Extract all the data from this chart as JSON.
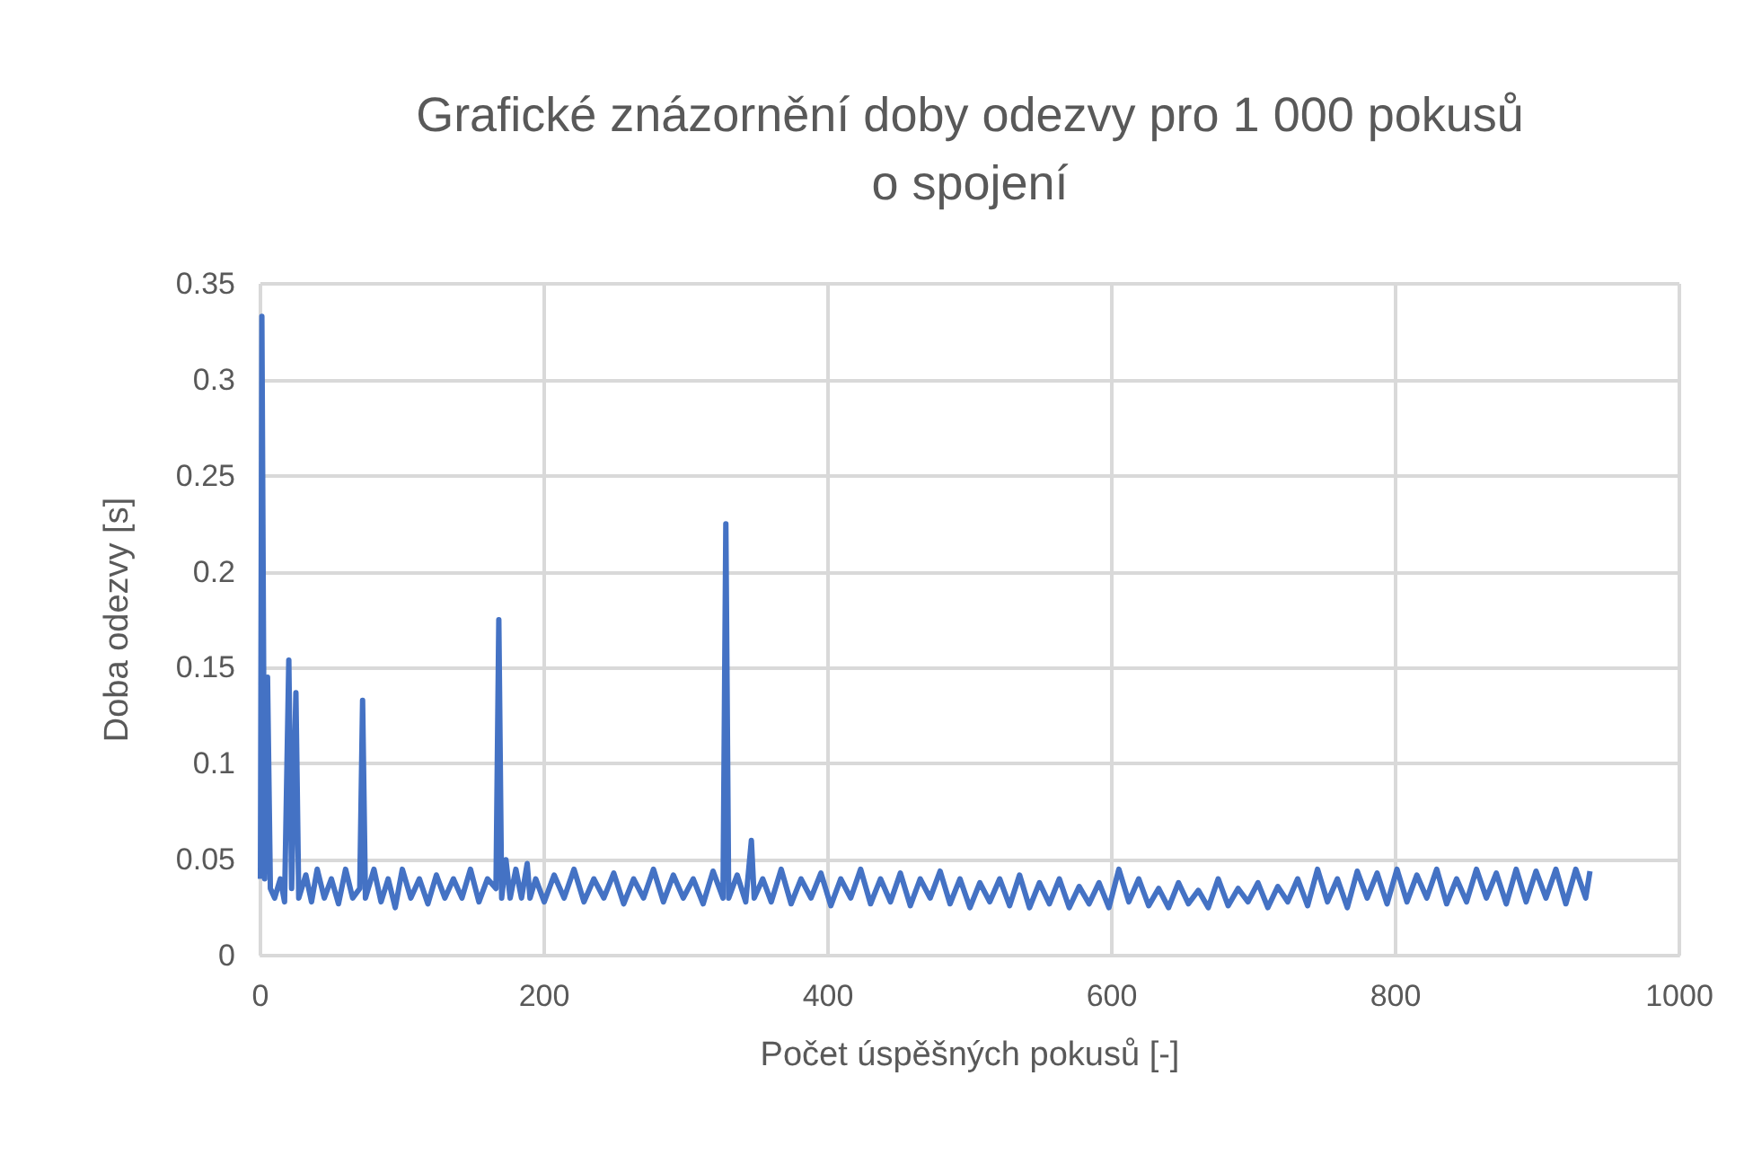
{
  "chart_data": {
    "type": "line",
    "title": "Grafické znázornění doby odezvy pro 1 000 pokusů o spojení",
    "xlabel": "Počet úspěšných pokusů [-]",
    "ylabel": "Doba odezvy [s]",
    "x": [
      0,
      1,
      3,
      5,
      7,
      10,
      14,
      17,
      20,
      22,
      25,
      27,
      32,
      36,
      40,
      45,
      50,
      55,
      60,
      65,
      70,
      72,
      74,
      80,
      85,
      90,
      95,
      100,
      106,
      112,
      118,
      124,
      130,
      136,
      142,
      148,
      154,
      160,
      166,
      168,
      170,
      173,
      176,
      180,
      184,
      188,
      190,
      194,
      200,
      207,
      214,
      221,
      228,
      235,
      242,
      249,
      256,
      263,
      270,
      277,
      284,
      291,
      298,
      305,
      312,
      319,
      326,
      328,
      330,
      336,
      342,
      346,
      348,
      354,
      360,
      367,
      374,
      381,
      388,
      395,
      402,
      409,
      416,
      423,
      430,
      437,
      444,
      451,
      458,
      465,
      472,
      479,
      486,
      493,
      500,
      507,
      514,
      521,
      528,
      535,
      542,
      549,
      556,
      563,
      570,
      577,
      584,
      591,
      598,
      605,
      612,
      619,
      626,
      633,
      640,
      647,
      654,
      661,
      668,
      675,
      682,
      689,
      696,
      703,
      710,
      717,
      724,
      731,
      738,
      745,
      752,
      759,
      766,
      773,
      780,
      787,
      794,
      801,
      808,
      815,
      822,
      829,
      836,
      843,
      850,
      857,
      864,
      871,
      878,
      885,
      892,
      899,
      906,
      913,
      920,
      927,
      934,
      937
    ],
    "series": [
      {
        "color": "#4472c4",
        "values": [
          0.04,
          0.333,
          0.04,
          0.145,
          0.035,
          0.03,
          0.04,
          0.028,
          0.154,
          0.035,
          0.137,
          0.03,
          0.042,
          0.028,
          0.045,
          0.03,
          0.04,
          0.027,
          0.045,
          0.03,
          0.035,
          0.133,
          0.03,
          0.045,
          0.028,
          0.04,
          0.025,
          0.045,
          0.03,
          0.04,
          0.027,
          0.042,
          0.03,
          0.04,
          0.03,
          0.045,
          0.028,
          0.04,
          0.035,
          0.175,
          0.03,
          0.05,
          0.03,
          0.045,
          0.03,
          0.048,
          0.03,
          0.04,
          0.028,
          0.042,
          0.03,
          0.045,
          0.028,
          0.04,
          0.03,
          0.043,
          0.027,
          0.04,
          0.03,
          0.045,
          0.028,
          0.042,
          0.03,
          0.04,
          0.027,
          0.044,
          0.03,
          0.225,
          0.03,
          0.042,
          0.028,
          0.06,
          0.03,
          0.04,
          0.028,
          0.045,
          0.027,
          0.04,
          0.03,
          0.043,
          0.026,
          0.04,
          0.03,
          0.045,
          0.027,
          0.04,
          0.028,
          0.043,
          0.026,
          0.04,
          0.03,
          0.044,
          0.027,
          0.04,
          0.025,
          0.038,
          0.028,
          0.04,
          0.026,
          0.042,
          0.025,
          0.038,
          0.027,
          0.04,
          0.025,
          0.036,
          0.027,
          0.038,
          0.025,
          0.045,
          0.028,
          0.04,
          0.026,
          0.035,
          0.025,
          0.038,
          0.027,
          0.034,
          0.025,
          0.04,
          0.026,
          0.035,
          0.028,
          0.038,
          0.025,
          0.036,
          0.028,
          0.04,
          0.026,
          0.045,
          0.028,
          0.04,
          0.025,
          0.044,
          0.03,
          0.043,
          0.027,
          0.045,
          0.028,
          0.042,
          0.03,
          0.045,
          0.027,
          0.04,
          0.028,
          0.045,
          0.03,
          0.043,
          0.027,
          0.045,
          0.028,
          0.044,
          0.03,
          0.045,
          0.027,
          0.045,
          0.03,
          0.044
        ]
      }
    ],
    "xlim": [
      0,
      1000
    ],
    "xticks": [
      0,
      200,
      400,
      600,
      800,
      1000
    ],
    "ylim": [
      0,
      0.35
    ],
    "yticks": [
      0,
      0.05,
      0.1,
      0.15,
      0.2,
      0.25,
      0.3,
      0.35
    ],
    "grid": true,
    "marker": "none",
    "line_style": "solid"
  }
}
